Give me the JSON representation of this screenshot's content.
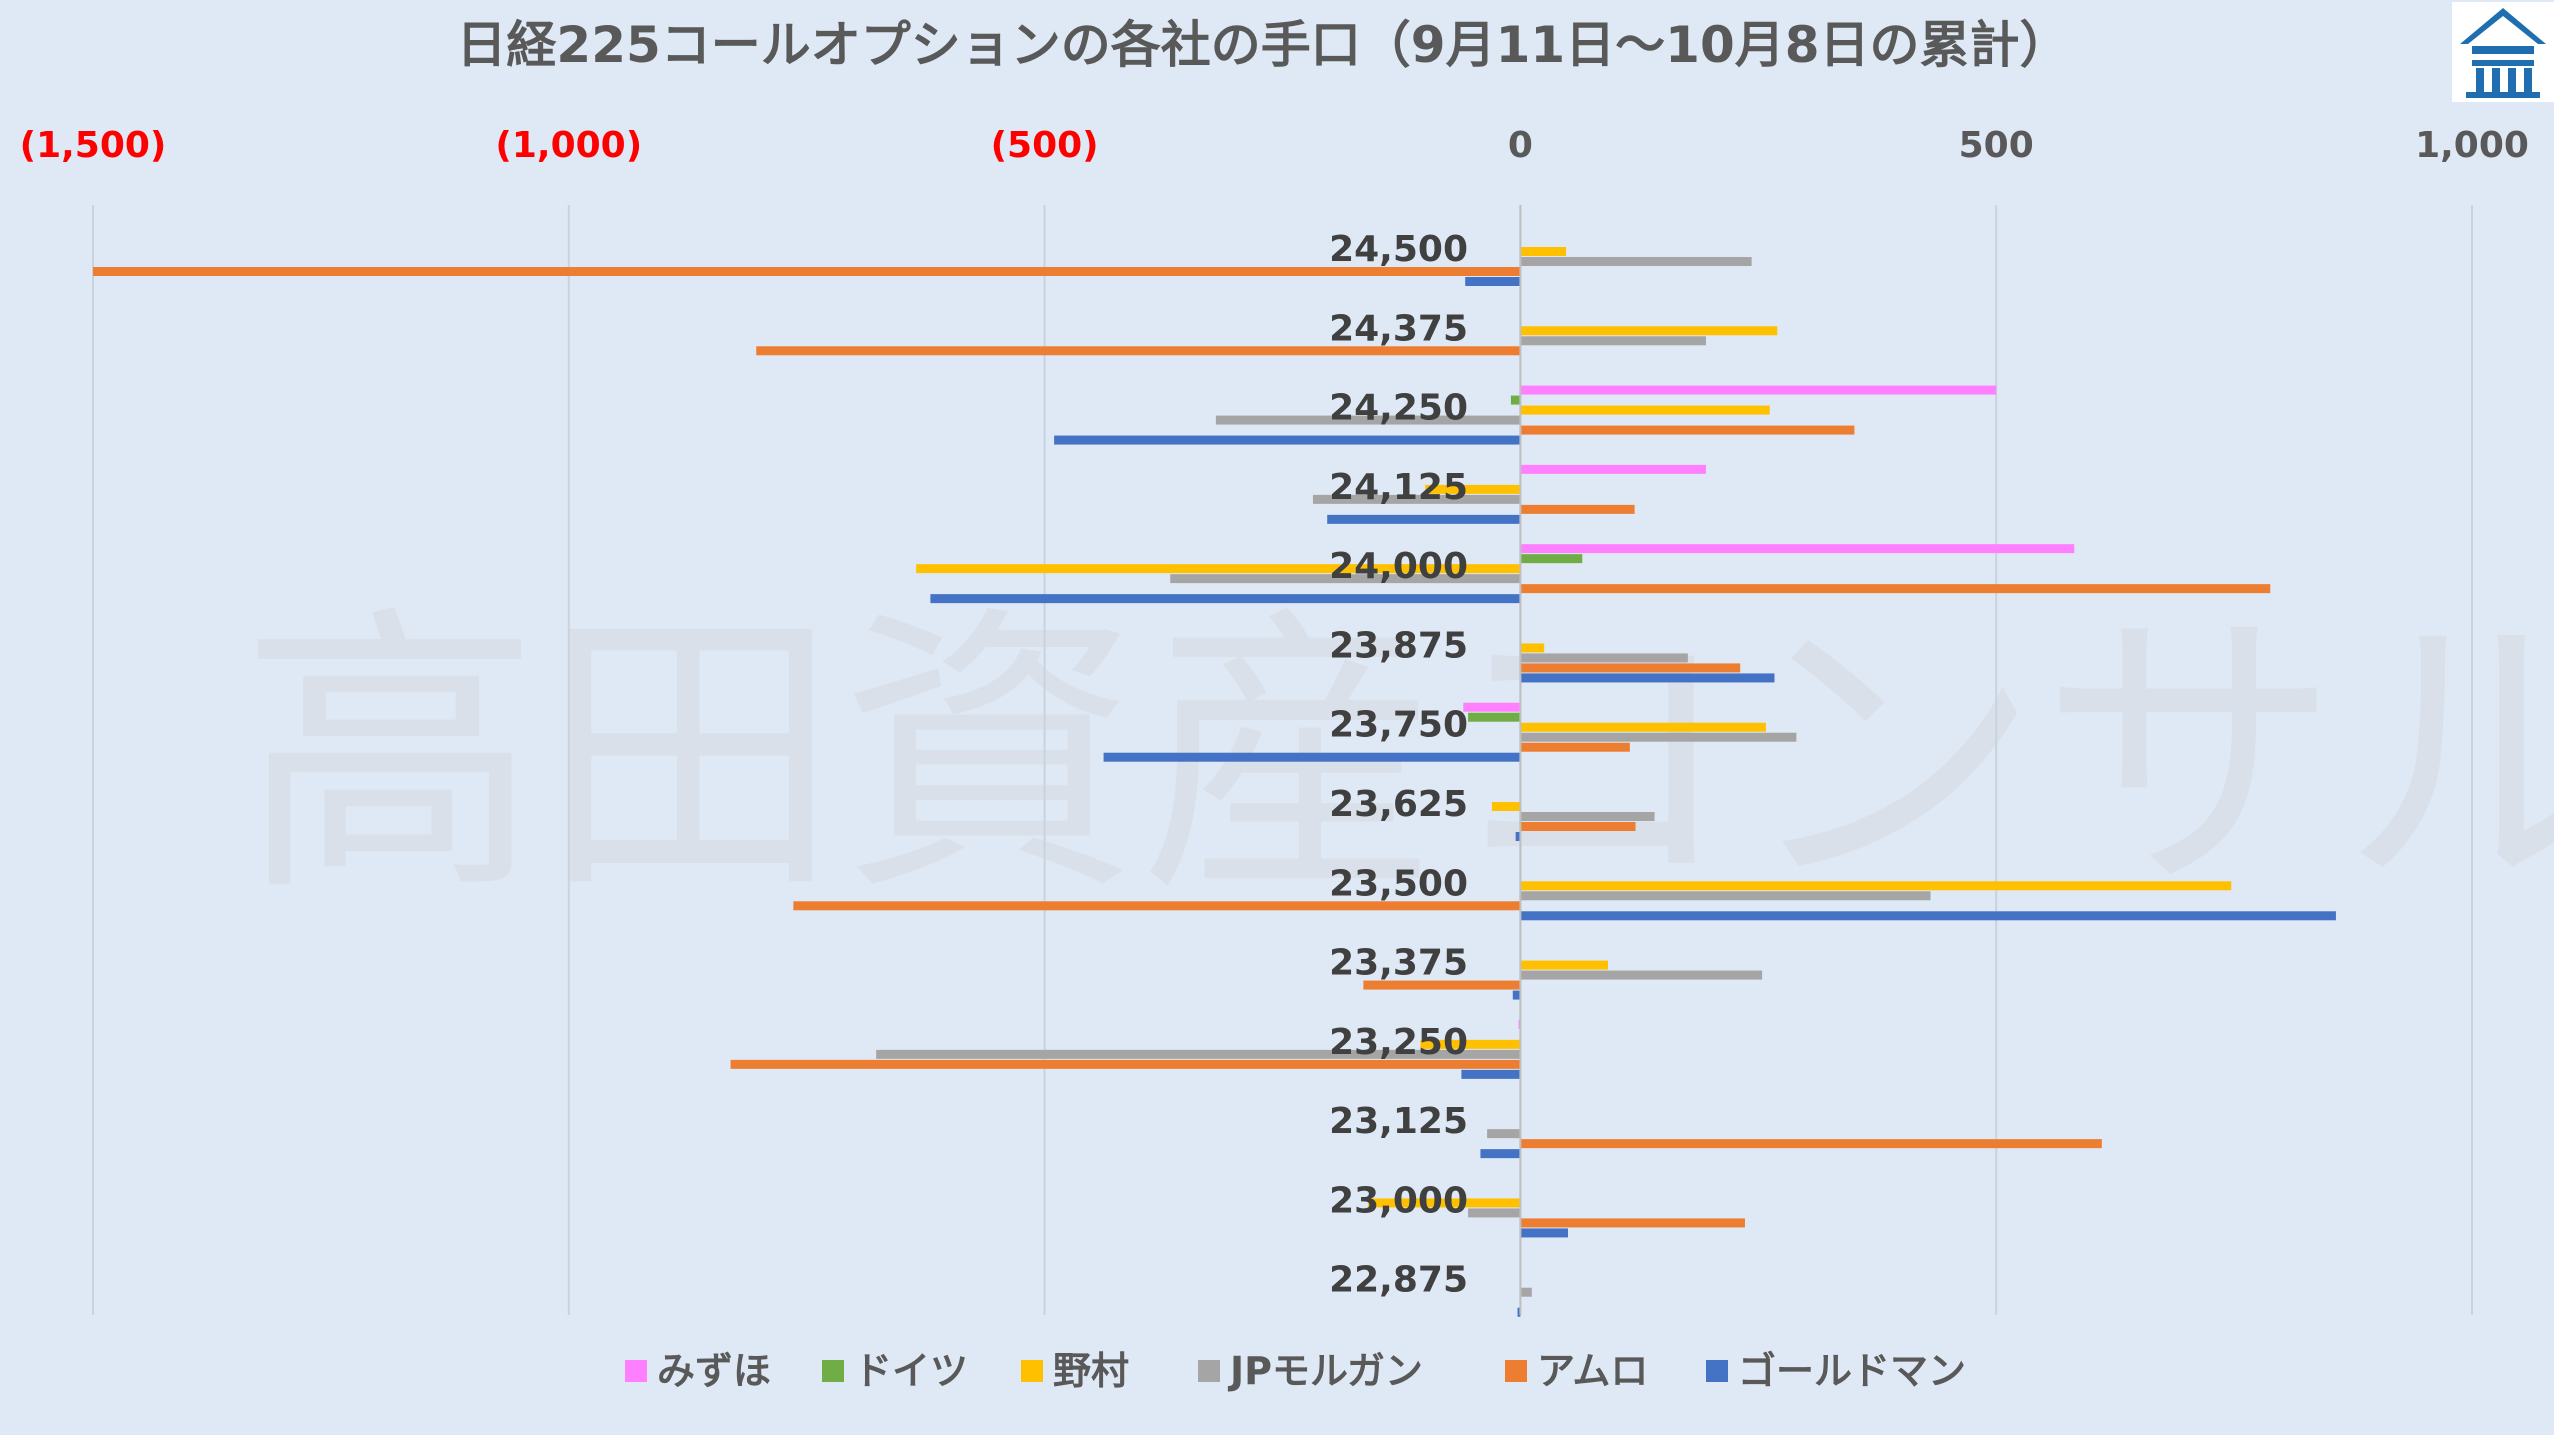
{
  "logo_name": "house-logo-icon",
  "watermark": "高田資産コンサル",
  "chart_data": {
    "type": "bar",
    "orientation": "horizontal",
    "title": "日経225コールオプションの各社の手口（9月11日～10月8日の累計）",
    "xlim": [
      -1500,
      1000
    ],
    "x_ticks": [
      -1500,
      -1000,
      -500,
      0,
      500,
      1000
    ],
    "x_tick_labels": [
      "(1,500)",
      "(1,000)",
      "(500)",
      "0",
      "500",
      "1,000"
    ],
    "negative_tick_color": "#ff0000",
    "positive_tick_color": "#595959",
    "grid": true,
    "legend_position": "bottom",
    "categories": [
      "24,500",
      "24,375",
      "24,250",
      "24,125",
      "24,000",
      "23,875",
      "23,750",
      "23,625",
      "23,500",
      "23,375",
      "23,250",
      "23,125",
      "23,000",
      "22,875"
    ],
    "series": [
      {
        "name": "みずほ",
        "color": "#ff80ff",
        "values": [
          0,
          0,
          500,
          195,
          582,
          0,
          -60,
          0,
          0,
          0,
          -2,
          0,
          0,
          0
        ]
      },
      {
        "name": "ドイツ",
        "color": "#70ad47",
        "values": [
          0,
          0,
          -10,
          0,
          65,
          0,
          -55,
          0,
          0,
          0,
          0,
          0,
          0,
          0
        ]
      },
      {
        "name": "野村",
        "color": "#ffc000",
        "values": [
          48,
          270,
          262,
          -100,
          -635,
          25,
          258,
          -30,
          747,
          92,
          -105,
          0,
          -160,
          0
        ]
      },
      {
        "name": "JPモルガン",
        "color": "#a5a5a5",
        "values": [
          243,
          195,
          -320,
          -218,
          -368,
          176,
          290,
          141,
          431,
          254,
          -677,
          -35,
          -55,
          12
        ]
      },
      {
        "name": "アムロ",
        "color": "#ed7d31",
        "values": [
          -1500,
          -803,
          351,
          120,
          788,
          231,
          115,
          121,
          -764,
          -165,
          -830,
          611,
          236,
          0
        ]
      },
      {
        "name": "ゴールドマン",
        "color": "#4472c4",
        "values": [
          -58,
          0,
          -490,
          -203,
          -620,
          267,
          -438,
          -5,
          857,
          -8,
          -62,
          -42,
          50,
          -3
        ]
      }
    ]
  }
}
